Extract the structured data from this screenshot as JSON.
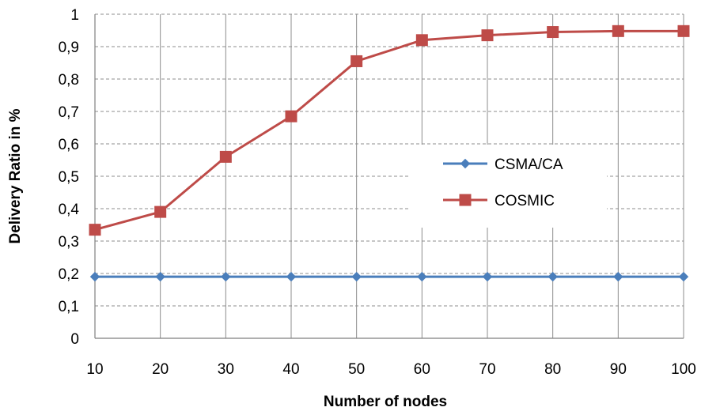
{
  "chart_data": {
    "type": "line",
    "title": "",
    "xlabel": "Number of nodes",
    "ylabel": "Delivery Ratio in %",
    "x": [
      10,
      20,
      30,
      40,
      50,
      60,
      70,
      80,
      90,
      100
    ],
    "x_tick_labels": [
      "10",
      "20",
      "30",
      "40",
      "50",
      "60",
      "70",
      "80",
      "90",
      "100"
    ],
    "y_tick_labels": [
      "0",
      "0,1",
      "0,2",
      "0,3",
      "0,4",
      "0,5",
      "0,6",
      "0,7",
      "0,8",
      "0,9",
      "1"
    ],
    "ylim": [
      0,
      1
    ],
    "grid": true,
    "legend_position": "right",
    "series": [
      {
        "name": "CSMA/CA",
        "color": "#4a7ebb",
        "marker": "diamond",
        "values": [
          0.19,
          0.19,
          0.19,
          0.19,
          0.19,
          0.19,
          0.19,
          0.19,
          0.19,
          0.19
        ]
      },
      {
        "name": "COSMIC",
        "color": "#be4b48",
        "marker": "square",
        "values": [
          0.335,
          0.39,
          0.56,
          0.685,
          0.855,
          0.92,
          0.935,
          0.945,
          0.948,
          0.948
        ]
      }
    ]
  }
}
